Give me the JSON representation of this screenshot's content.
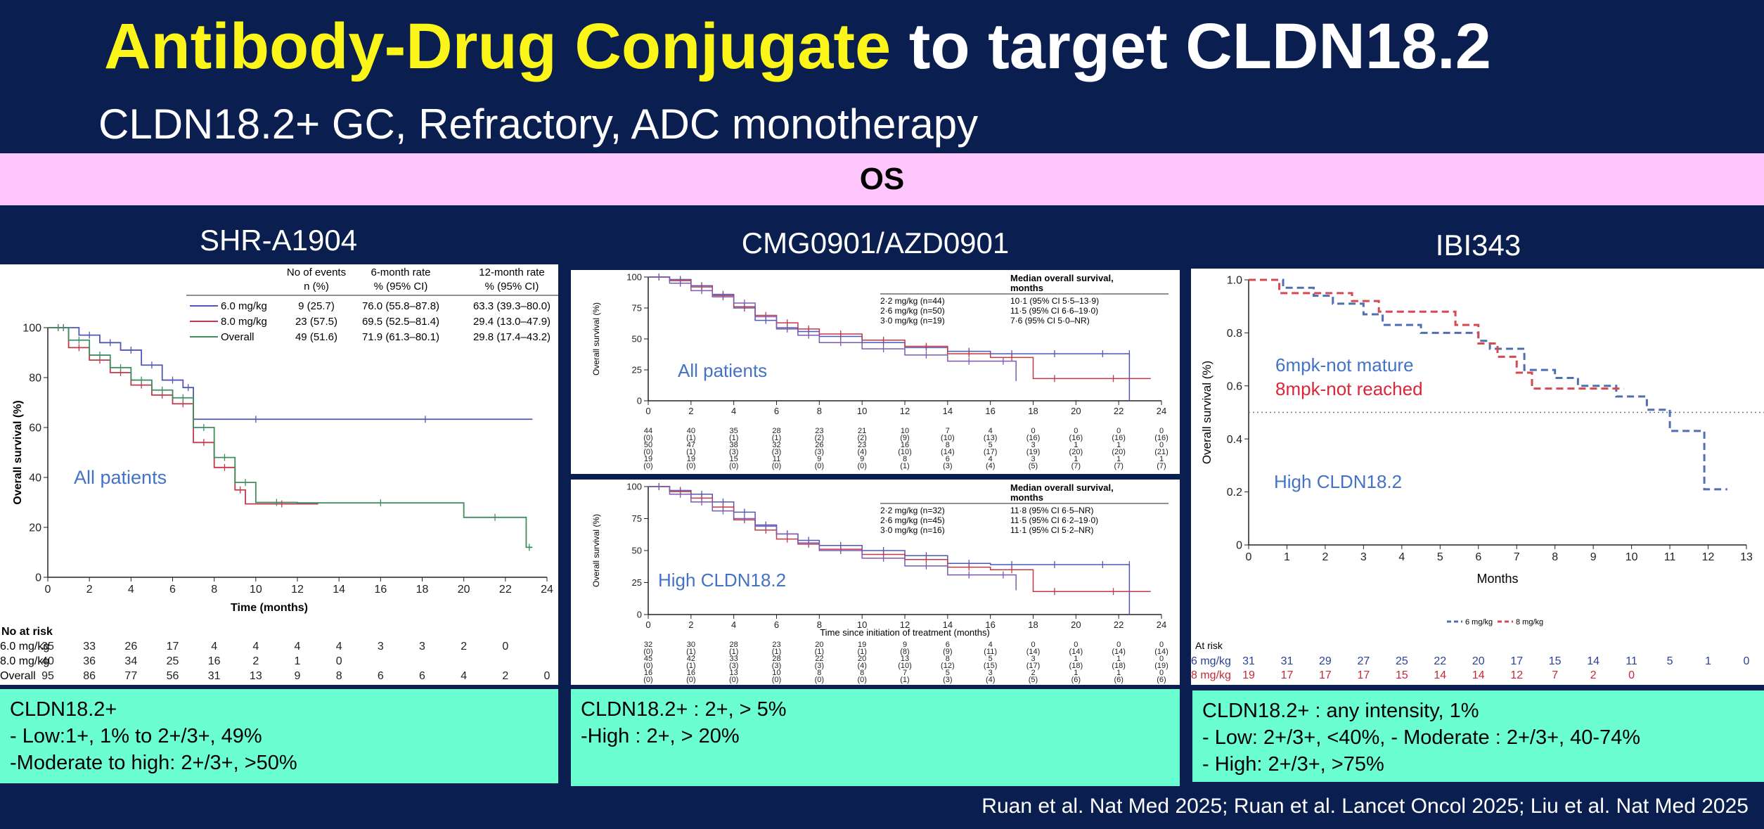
{
  "header": {
    "title_highlight": "Antibody-Drug Conjugate",
    "title_rest": " to target CLDN18.2",
    "subtitle": "CLDN18.2+ GC, Refractory, ADC monotherapy",
    "section": "OS"
  },
  "panels": [
    {
      "title": "SHR-A1904",
      "criteria": [
        "CLDN18.2+",
        "- Low:1+, 1% to 2+/3+, 49%",
        "-Moderate to high: 2+/3+, >50%"
      ]
    },
    {
      "title": "CMG0901/AZD0901",
      "criteria": [
        "CLDN18.2+ : 2+, > 5%",
        "-High : 2+, > 20%"
      ]
    },
    {
      "title": "IBI343",
      "criteria": [
        "CLDN18.2+ : any intensity, 1%",
        "- Low: 2+/3+, <40%, - Moderate : 2+/3+, 40-74%",
        "- High: 2+/3+, >75%"
      ]
    }
  ],
  "citation": "Ruan et al. Nat Med 2025; Ruan et al. Lancet Oncol 2025; Liu et al. Nat Med 2025",
  "colors": {
    "navy": "#0a1f4f",
    "yellow": "#fbf51a",
    "pink": "#fec6fd",
    "mint": "#6afed0",
    "blue": "#4f57b8",
    "red": "#c03a4a",
    "green": "#3e8e60",
    "annot_blue": "#4472c4",
    "annot_red": "#d9263a"
  },
  "chart_data": [
    {
      "type": "line",
      "id": "shr",
      "annotation": "All patients",
      "xlabel": "Time (months)",
      "ylabel": "Overall survival (%)",
      "xlim": [
        0,
        24
      ],
      "ylim": [
        0,
        100
      ],
      "xticks": [
        0,
        2,
        4,
        6,
        8,
        10,
        12,
        14,
        16,
        18,
        20,
        22,
        24
      ],
      "yticks": [
        0,
        20,
        40,
        60,
        80,
        100
      ],
      "legend_headers": [
        "No of events",
        "n (%)",
        "6-month rate",
        "% (95% CI)",
        "12-month rate",
        "% (95% CI)"
      ],
      "series": [
        {
          "name": "6.0 mg/kg",
          "events": "9 (25.7)",
          "rate6": "76.0 (55.8–87.8)",
          "rate12": "63.3 (39.3–80.0)",
          "color": "#4f57b8",
          "x": [
            0,
            1.5,
            2.5,
            3.5,
            4.5,
            5.5,
            6.5,
            7.0,
            13.0,
            23.3
          ],
          "y": [
            100,
            97,
            94,
            91,
            85,
            79,
            76,
            63.3,
            63.3,
            63.3
          ]
        },
        {
          "name": "8.0 mg/kg",
          "events": "23 (57.5)",
          "rate6": "69.5 (52.5–81.4)",
          "rate12": "29.4 (13.0–47.9)",
          "color": "#c03a4a",
          "x": [
            0,
            1.0,
            2.0,
            3.0,
            4.0,
            5.0,
            6.0,
            7.0,
            8.0,
            9.0,
            9.5,
            13.0
          ],
          "y": [
            100,
            92,
            87,
            82,
            77,
            73,
            69.5,
            54,
            44,
            35,
            29.4,
            29.4
          ]
        },
        {
          "name": "Overall",
          "events": "49 (51.6)",
          "rate6": "71.9 (61.3–80.1)",
          "rate12": "29.8 (17.4–43.2)",
          "color": "#3e8e60",
          "x": [
            0,
            1.0,
            2.0,
            3.0,
            4.0,
            5.0,
            6.0,
            7.0,
            8.0,
            9.0,
            10.0,
            12.0,
            20.0,
            23.0,
            23.3
          ],
          "y": [
            100,
            95,
            89,
            84,
            79,
            75,
            71.9,
            60,
            48,
            38,
            30,
            29.8,
            24,
            12,
            12
          ]
        }
      ],
      "at_risk_label": "No at risk",
      "at_risk_x": [
        0,
        2,
        4,
        6,
        8,
        10,
        12,
        14,
        16,
        18,
        20,
        22,
        24
      ],
      "at_risk": [
        {
          "name": "6.0 mg/kg",
          "values": [
            "35",
            "33",
            "26",
            "17",
            "4",
            "4",
            "4",
            "4",
            "3",
            "3",
            "2",
            "0",
            ""
          ]
        },
        {
          "name": "8.0 mg/kg",
          "values": [
            "40",
            "36",
            "34",
            "25",
            "16",
            "2",
            "1",
            "0",
            "",
            "",
            "",
            "",
            ""
          ]
        },
        {
          "name": "Overall",
          "values": [
            "95",
            "86",
            "77",
            "56",
            "31",
            "13",
            "9",
            "8",
            "6",
            "6",
            "4",
            "2",
            "0"
          ]
        }
      ]
    },
    {
      "type": "line",
      "id": "cmg_all",
      "annotation": "All patients",
      "xlabel": "",
      "ylabel": "Overall survival (%)",
      "xlim": [
        0,
        24
      ],
      "ylim": [
        0,
        100
      ],
      "xticks": [
        0,
        2,
        4,
        6,
        8,
        10,
        12,
        14,
        16,
        18,
        20,
        22,
        24
      ],
      "yticks": [
        0,
        25,
        50,
        75,
        100
      ],
      "legend_title": [
        "Median overall survival,",
        "months"
      ],
      "series": [
        {
          "name": "2·2 mg/kg (n=44)",
          "ci": "10·1 (95% CI 5·5–13·9)",
          "color": "#4f57b8",
          "x": [
            0,
            1,
            2,
            3,
            4,
            5,
            6,
            7,
            8,
            10,
            12,
            14,
            16,
            18,
            20,
            22.5,
            22.5
          ],
          "y": [
            100,
            98,
            93,
            86,
            75,
            65,
            59,
            56,
            52,
            47,
            43,
            40,
            38,
            38,
            38,
            38,
            0
          ]
        },
        {
          "name": "2·6 mg/kg (n=50)",
          "ci": "11·5 (95% CI 6·6–19·0)",
          "color": "#c03a4a",
          "x": [
            0,
            1,
            2,
            3,
            4,
            5,
            6,
            7,
            8,
            10,
            12,
            14,
            16,
            18,
            20,
            23.5
          ],
          "y": [
            100,
            97,
            92,
            85,
            76,
            69,
            63,
            58,
            54,
            49,
            44,
            38,
            35,
            18,
            18,
            18
          ]
        },
        {
          "name": "3·0 mg/kg (n=19)",
          "ci": "7·6 (95% CI 5·0–NR)",
          "color": "#7a5bb0",
          "x": [
            0,
            1,
            2,
            3,
            4,
            5,
            6,
            7,
            8,
            10,
            12,
            14,
            16,
            17.2
          ],
          "y": [
            100,
            95,
            89,
            84,
            79,
            68,
            58,
            53,
            47,
            42,
            37,
            32,
            32,
            16
          ]
        }
      ],
      "at_risk_x": [
        0,
        2,
        4,
        6,
        8,
        10,
        12,
        14,
        16,
        18,
        20,
        22,
        24
      ],
      "at_risk": [
        {
          "name": "row1",
          "values": [
            "44",
            "40",
            "35",
            "28",
            "23",
            "21",
            "10",
            "7",
            "4",
            "0",
            "0",
            "0",
            "0"
          ]
        },
        {
          "name": "row2",
          "values": [
            "(0)",
            "(1)",
            "(1)",
            "(1)",
            "(2)",
            "(2)",
            "(9)",
            "(10)",
            "(13)",
            "(16)",
            "(16)",
            "(16)",
            "(16)"
          ]
        },
        {
          "name": "row3",
          "values": [
            "50",
            "47",
            "38",
            "32",
            "26",
            "23",
            "16",
            "8",
            "5",
            "3",
            "1",
            "1",
            "0"
          ]
        },
        {
          "name": "row4",
          "values": [
            "(0)",
            "(1)",
            "(3)",
            "(3)",
            "(3)",
            "(4)",
            "(10)",
            "(14)",
            "(17)",
            "(19)",
            "(20)",
            "(20)",
            "(21)"
          ]
        },
        {
          "name": "row5",
          "values": [
            "19",
            "19",
            "15",
            "11",
            "9",
            "9",
            "8",
            "6",
            "4",
            "3",
            "1",
            "1",
            "1"
          ]
        },
        {
          "name": "row6",
          "values": [
            "(0)",
            "(0)",
            "(0)",
            "(0)",
            "(0)",
            "(0)",
            "(1)",
            "(3)",
            "(4)",
            "(5)",
            "(7)",
            "(7)",
            "(7)"
          ]
        }
      ]
    },
    {
      "type": "line",
      "id": "cmg_high",
      "annotation": "High CLDN18.2",
      "xlabel": "Time since initiation of treatment (months)",
      "ylabel": "Overall survival (%)",
      "xlim": [
        0,
        24
      ],
      "ylim": [
        0,
        100
      ],
      "xticks": [
        0,
        2,
        4,
        6,
        8,
        10,
        12,
        14,
        16,
        18,
        20,
        22,
        24
      ],
      "yticks": [
        0,
        25,
        50,
        75,
        100
      ],
      "legend_title": [
        "Median overall survival,",
        "months"
      ],
      "series": [
        {
          "name": "2·2 mg/kg (n=32)",
          "ci": "11·8 (95% CI 6·5–NR)",
          "color": "#4f57b8",
          "x": [
            0,
            1,
            2,
            3,
            4,
            5,
            6,
            7,
            8,
            10,
            12,
            14,
            16,
            18,
            20,
            22.5,
            22.5
          ],
          "y": [
            100,
            97,
            94,
            88,
            80,
            70,
            63,
            58,
            54,
            50,
            46,
            40,
            39,
            39,
            39,
            39,
            0
          ]
        },
        {
          "name": "2·6 mg/kg (n=45)",
          "ci": "11·5 (95% CI 6·2–19·0)",
          "color": "#c03a4a",
          "x": [
            0,
            1,
            2,
            3,
            4,
            5,
            6,
            7,
            8,
            10,
            12,
            14,
            16,
            18,
            20,
            23.5
          ],
          "y": [
            100,
            96,
            91,
            84,
            74,
            66,
            59,
            55,
            51,
            47,
            43,
            37,
            35,
            18,
            18,
            18
          ]
        },
        {
          "name": "3·0 mg/kg (n=16)",
          "ci": "11·1 (95% CI 5·2–NR)",
          "color": "#7a5bb0",
          "x": [
            0,
            1,
            2,
            3,
            4,
            5,
            6,
            7,
            8,
            10,
            12,
            14,
            16,
            17.2
          ],
          "y": [
            100,
            94,
            88,
            81,
            75,
            69,
            63,
            56,
            50,
            44,
            38,
            31,
            31,
            19
          ]
        }
      ],
      "at_risk_x": [
        0,
        2,
        4,
        6,
        8,
        10,
        12,
        14,
        16,
        18,
        20,
        22,
        24
      ],
      "at_risk": [
        {
          "name": "row1",
          "values": [
            "32",
            "30",
            "28",
            "23",
            "20",
            "19",
            "9",
            "6",
            "4",
            "0",
            "0",
            "0",
            "0"
          ]
        },
        {
          "name": "row2",
          "values": [
            "(0)",
            "(1)",
            "(1)",
            "(1)",
            "(1)",
            "(1)",
            "(8)",
            "(9)",
            "(11)",
            "(14)",
            "(14)",
            "(14)",
            "(14)"
          ]
        },
        {
          "name": "row3",
          "values": [
            "45",
            "42",
            "33",
            "28",
            "22",
            "20",
            "13",
            "8",
            "5",
            "3",
            "1",
            "1",
            "0"
          ]
        },
        {
          "name": "row4",
          "values": [
            "(0)",
            "(1)",
            "(3)",
            "(3)",
            "(3)",
            "(4)",
            "(10)",
            "(12)",
            "(15)",
            "(17)",
            "(18)",
            "(18)",
            "(19)"
          ]
        },
        {
          "name": "row5",
          "values": [
            "16",
            "16",
            "13",
            "10",
            "8",
            "8",
            "7",
            "5",
            "3",
            "2",
            "1",
            "1",
            "0"
          ]
        },
        {
          "name": "row6",
          "values": [
            "(0)",
            "(0)",
            "(0)",
            "(0)",
            "(0)",
            "(0)",
            "(1)",
            "(3)",
            "(4)",
            "(5)",
            "(6)",
            "(6)",
            "(6)"
          ]
        }
      ]
    },
    {
      "type": "line",
      "id": "ibi",
      "annotations": [
        {
          "text": "6mpk-not mature",
          "color": "#4472c4"
        },
        {
          "text": "8mpk-not reached",
          "color": "#d9263a"
        },
        {
          "text": "High CLDN18.2",
          "color": "#4472c4"
        }
      ],
      "xlabel": "Months",
      "ylabel": "Overall survival (%)",
      "xlim": [
        0,
        13
      ],
      "ylim": [
        0,
        1.0
      ],
      "xticks": [
        0,
        1,
        2,
        3,
        4,
        5,
        6,
        7,
        8,
        9,
        10,
        11,
        12,
        13
      ],
      "yticks": [
        0,
        0.2,
        0.4,
        0.6,
        0.8,
        1.0
      ],
      "ytick_labels": [
        "0",
        "0.2",
        "0.4",
        "0.6",
        "0.8",
        "1.0"
      ],
      "reference_line": 0.5,
      "series": [
        {
          "name": "6 mg/kg",
          "color": "#4f6fb0",
          "x": [
            0,
            0.9,
            1.7,
            2.2,
            3.0,
            3.5,
            4.5,
            6.0,
            6.3,
            7.2,
            8.0,
            8.6,
            9.6,
            10.4,
            11.0,
            11.9,
            12.5
          ],
          "y": [
            1.0,
            0.97,
            0.94,
            0.91,
            0.87,
            0.83,
            0.8,
            0.77,
            0.74,
            0.66,
            0.63,
            0.6,
            0.56,
            0.51,
            0.43,
            0.21,
            0.21
          ]
        },
        {
          "name": "8 mg/kg",
          "color": "#d34a52",
          "x": [
            0,
            0.8,
            2.7,
            3.4,
            5.4,
            6.0,
            6.5,
            7.0,
            7.4,
            9.8
          ],
          "y": [
            1.0,
            0.95,
            0.92,
            0.88,
            0.83,
            0.76,
            0.71,
            0.65,
            0.59,
            0.59
          ]
        }
      ],
      "at_risk_label": "At risk",
      "at_risk_x": [
        0,
        1,
        2,
        3,
        4,
        5,
        6,
        7,
        8,
        9,
        10,
        11,
        12,
        13
      ],
      "at_risk": [
        {
          "name": "6 mg/kg",
          "color": "#2b3f9a",
          "values": [
            "31",
            "31",
            "29",
            "27",
            "25",
            "22",
            "20",
            "17",
            "15",
            "14",
            "11",
            "5",
            "1",
            "0"
          ]
        },
        {
          "name": "8 mg/kg",
          "color": "#c42a36",
          "values": [
            "19",
            "17",
            "17",
            "17",
            "15",
            "14",
            "14",
            "12",
            "7",
            "2",
            "0",
            "",
            "",
            ""
          ]
        }
      ]
    }
  ]
}
